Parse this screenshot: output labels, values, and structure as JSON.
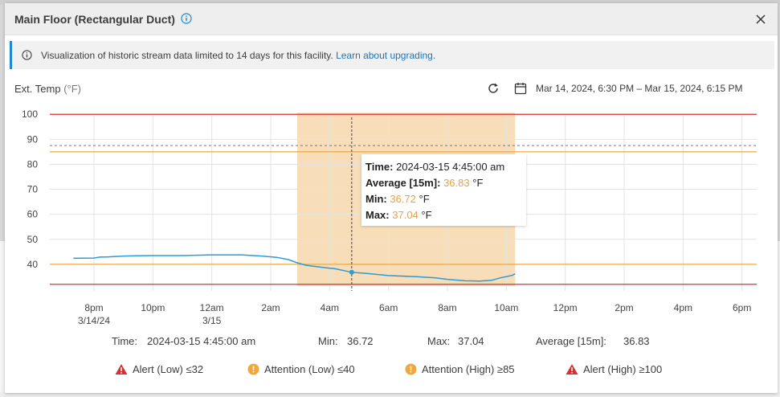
{
  "window": {
    "title": "Main Floor (Rectangular Duct)"
  },
  "banner": {
    "text": "Visualization of historic stream data limited to 14 days for this facility.",
    "link": "Learn about upgrading."
  },
  "metric": {
    "label": "Ext. Temp",
    "unit": "(°F)"
  },
  "date_range": "Mar 14, 2024, 6:30 PM – Mar 15, 2024, 6:15 PM",
  "colors": {
    "alert": "#d93030",
    "attention": "#f0a83a",
    "series": "#2c9bd6",
    "highlight": "#f7d7ad",
    "accent_link": "#1b75bc"
  },
  "chart_data": {
    "type": "line",
    "ylim": [
      30,
      102
    ],
    "yticks": [
      "100",
      "90",
      "80",
      "70",
      "60",
      "50",
      "40"
    ],
    "xticks": [
      {
        "label": "8pm",
        "sub": "3/14/24"
      },
      {
        "label": "10pm",
        "sub": ""
      },
      {
        "label": "12am",
        "sub": "3/15"
      },
      {
        "label": "2am",
        "sub": ""
      },
      {
        "label": "4am",
        "sub": ""
      },
      {
        "label": "6am",
        "sub": ""
      },
      {
        "label": "8am",
        "sub": ""
      },
      {
        "label": "10am",
        "sub": ""
      },
      {
        "label": "12pm",
        "sub": ""
      },
      {
        "label": "2pm",
        "sub": ""
      },
      {
        "label": "4pm",
        "sub": ""
      },
      {
        "label": "6pm",
        "sub": ""
      }
    ],
    "x_hours": [
      0,
      2,
      4,
      6,
      8,
      10,
      12,
      14,
      16,
      18,
      20,
      22
    ],
    "x_range_hours": [
      -1.5,
      22.5
    ],
    "thresholds": [
      {
        "name": "Alert (High)",
        "value": 100,
        "kind": "alert"
      },
      {
        "name": "Attention (High)",
        "value": 85,
        "kind": "attention"
      },
      {
        "name": "Attention (Low)",
        "value": 40,
        "kind": "attention"
      },
      {
        "name": "Alert (Low)",
        "value": 32,
        "kind": "alert"
      }
    ],
    "reference_line": 87.5,
    "highlight_range_hours": [
      6.9,
      14.3
    ],
    "cursor_hour": 8.75,
    "series": [
      {
        "points": [
          [
            -0.7,
            42.4
          ],
          [
            0.0,
            42.5
          ],
          [
            0.2,
            42.9
          ],
          [
            0.5,
            43.0
          ],
          [
            1.0,
            43.3
          ],
          [
            1.5,
            43.4
          ],
          [
            2.0,
            43.5
          ],
          [
            3.0,
            43.5
          ],
          [
            4.0,
            43.8
          ],
          [
            5.0,
            43.8
          ],
          [
            5.7,
            43.3
          ],
          [
            6.2,
            42.8
          ],
          [
            6.6,
            41.9
          ],
          [
            6.9,
            40.6
          ],
          [
            7.2,
            39.6
          ],
          [
            7.8,
            38.7
          ],
          [
            8.2,
            38.2
          ],
          [
            8.75,
            36.83
          ],
          [
            9.3,
            36.3
          ],
          [
            10.0,
            35.5
          ],
          [
            11.0,
            35.0
          ],
          [
            11.6,
            34.6
          ],
          [
            12.0,
            34.0
          ],
          [
            12.6,
            33.4
          ],
          [
            13.1,
            33.3
          ],
          [
            13.5,
            33.6
          ],
          [
            13.8,
            34.6
          ],
          [
            14.2,
            35.6
          ],
          [
            14.3,
            36.2
          ]
        ]
      }
    ]
  },
  "tooltip": {
    "time_label": "Time:",
    "time_value": "2024-03-15 4:45:00 am",
    "avg_label": "Average [15m]:",
    "avg_value": "36.83",
    "min_label": "Min:",
    "min_value": "36.72",
    "max_label": "Max:",
    "max_value": "37.04",
    "unit": "°F"
  },
  "summary": {
    "time_label": "Time:",
    "time_value": "2024-03-15 4:45:00 am",
    "min_label": "Min:",
    "min_value": "36.72",
    "max_label": "Max:",
    "max_value": "37.04",
    "avg_label": "Average [15m]:",
    "avg_value": "36.83"
  },
  "legend": [
    {
      "label": "Alert (Low) ≤32",
      "kind": "alert"
    },
    {
      "label": "Attention (Low) ≤40",
      "kind": "attention"
    },
    {
      "label": "Attention (High) ≥85",
      "kind": "attention"
    },
    {
      "label": "Alert (High) ≥100",
      "kind": "alert"
    }
  ]
}
